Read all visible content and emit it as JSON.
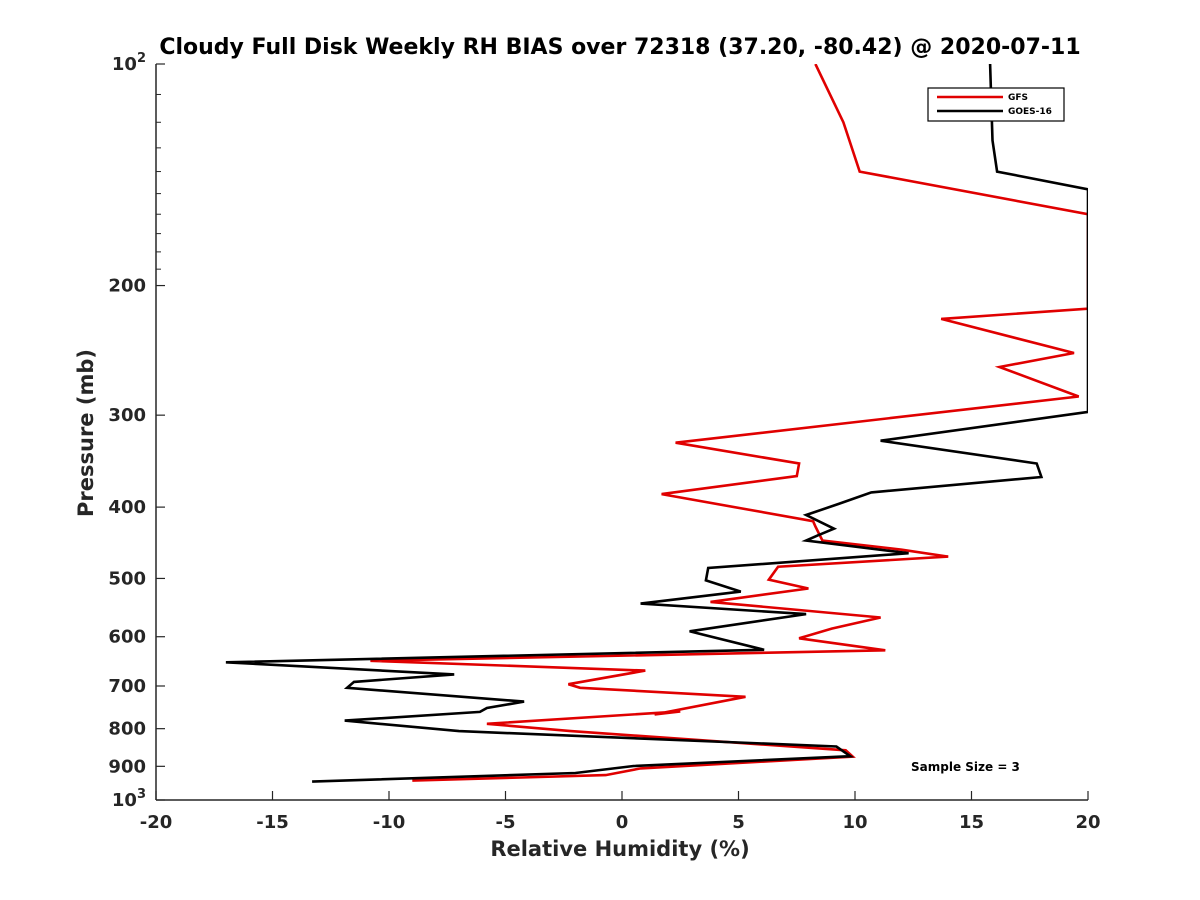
{
  "chart_data": {
    "type": "line",
    "title": "Cloudy Full Disk Weekly RH BIAS over 72318 (37.20, -80.42) @ 2020-07-11",
    "xlabel": "Relative Humidity (%)",
    "ylabel": "Pressure (mb)",
    "xlim": [
      -20,
      20
    ],
    "ylim": [
      100,
      1000
    ],
    "y_scale": "log",
    "y_reversed": true,
    "x_ticks": [
      "-20",
      "-15",
      "-10",
      "-5",
      "0",
      "5",
      "10",
      "15",
      "20"
    ],
    "y_ticks": [
      {
        "value": 100,
        "base": "10",
        "exp": "2"
      },
      {
        "value": 200,
        "label": "200"
      },
      {
        "value": 300,
        "label": "300"
      },
      {
        "value": 400,
        "label": "400"
      },
      {
        "value": 500,
        "label": "500"
      },
      {
        "value": 600,
        "label": "600"
      },
      {
        "value": 700,
        "label": "700"
      },
      {
        "value": 800,
        "label": "800"
      },
      {
        "value": 900,
        "label": "900"
      },
      {
        "value": 1000,
        "base": "10",
        "exp": "3"
      }
    ],
    "legend": {
      "position": "top-right",
      "entries": [
        "GFS",
        "GOES-16"
      ]
    },
    "annotation": "Sample Size = 3",
    "series": [
      {
        "name": "GFS",
        "color": "#e00000",
        "points": [
          [
            8.3,
            100
          ],
          [
            9.5,
            120
          ],
          [
            10.2,
            140
          ],
          [
            20,
            160
          ],
          [
            20,
            215
          ],
          [
            13.7,
            222
          ],
          [
            19.4,
            247
          ],
          [
            16.2,
            258
          ],
          [
            19.6,
            283
          ],
          [
            2.3,
            327
          ],
          [
            7.6,
            349
          ],
          [
            7.5,
            363
          ],
          [
            1.7,
            384
          ],
          [
            8.2,
            418
          ],
          [
            8.3,
            425
          ],
          [
            8.6,
            444
          ],
          [
            12.0,
            457
          ],
          [
            14.0,
            467
          ],
          [
            6.7,
            482
          ],
          [
            6.3,
            502
          ],
          [
            8.0,
            516
          ],
          [
            3.8,
            538
          ],
          [
            11.1,
            565
          ],
          [
            9.0,
            585
          ],
          [
            7.6,
            603
          ],
          [
            11.3,
            626
          ],
          [
            -10.8,
            647
          ],
          [
            1.0,
            667
          ],
          [
            -2.3,
            696
          ],
          [
            -1.8,
            704
          ],
          [
            5.3,
            724
          ],
          [
            1.4,
            765
          ],
          [
            2.5,
            758
          ],
          [
            -5.8,
            788
          ],
          [
            -2.2,
            806
          ],
          [
            9.6,
            856
          ],
          [
            9.9,
            873
          ],
          [
            0.8,
            906
          ],
          [
            -0.7,
            925
          ],
          [
            -9.0,
            941
          ]
        ]
      },
      {
        "name": "GOES-16",
        "color": "#000000",
        "points": [
          [
            15.8,
            100
          ],
          [
            15.9,
            127
          ],
          [
            16.1,
            140
          ],
          [
            20,
            148
          ],
          [
            20,
            297
          ],
          [
            11.1,
            325
          ],
          [
            17.8,
            349
          ],
          [
            18.0,
            364
          ],
          [
            10.7,
            382
          ],
          [
            9.3,
            396
          ],
          [
            7.9,
            410
          ],
          [
            9.1,
            428
          ],
          [
            8.4,
            437
          ],
          [
            7.9,
            444
          ],
          [
            12.3,
            462
          ],
          [
            3.7,
            484
          ],
          [
            3.6,
            503
          ],
          [
            5.1,
            521
          ],
          [
            0.8,
            541
          ],
          [
            7.9,
            559
          ],
          [
            2.9,
            590
          ],
          [
            6.1,
            625
          ],
          [
            -17.0,
            650
          ],
          [
            -7.2,
            675
          ],
          [
            -11.5,
            691
          ],
          [
            -11.8,
            704
          ],
          [
            -4.2,
            735
          ],
          [
            -5.8,
            750
          ],
          [
            -6.1,
            759
          ],
          [
            -11.9,
            780
          ],
          [
            -7.0,
            806
          ],
          [
            9.2,
            846
          ],
          [
            9.8,
            872
          ],
          [
            0.5,
            899
          ],
          [
            -2.0,
            919
          ],
          [
            -13.3,
            944
          ]
        ]
      }
    ]
  }
}
